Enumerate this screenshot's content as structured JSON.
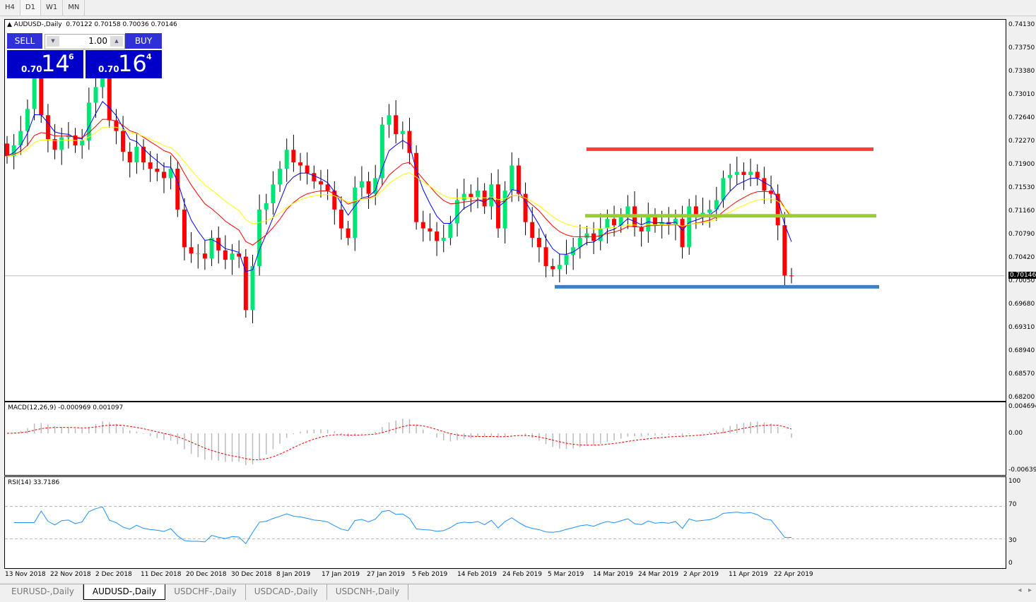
{
  "timeframes": [
    "H4",
    "D1",
    "W1",
    "MN"
  ],
  "active_timeframe": "D1",
  "chart": {
    "header": "AUDUSD-,Daily",
    "ohlc": "0.70122 0.70158 0.70036 0.70146"
  },
  "trade_panel": {
    "sell": "SELL",
    "buy": "BUY",
    "lots": "1.00",
    "sell_big": "0.70",
    "sell_pips": "14",
    "sell_frac": "6",
    "buy_big": "0.70",
    "buy_pips": "16",
    "buy_frac": "4",
    "color": "#0000c8"
  },
  "price_axis": [
    "0.74130",
    "0.73750",
    "0.73380",
    "0.73010",
    "0.72640",
    "0.72270",
    "0.71900",
    "0.71530",
    "0.71160",
    "0.70790",
    "0.70420",
    "0.70050",
    "0.69680",
    "0.69310",
    "0.68940",
    "0.68570",
    "0.68200"
  ],
  "current_price": "0.70146",
  "macd": {
    "label": "MACD(12,26,9) -0.000969 0.001097",
    "axis": [
      "0.004694",
      "0.00",
      "-0.00639"
    ]
  },
  "rsi": {
    "label": "RSI(14) 33.7186",
    "axis": [
      "100",
      "70",
      "30",
      "0"
    ]
  },
  "dates": [
    "13 Nov 2018",
    "22 Nov 2018",
    "2 Dec 2018",
    "11 Dec 2018",
    "20 Dec 2018",
    "30 Dec 2018",
    "8 Jan 2019",
    "17 Jan 2019",
    "27 Jan 2019",
    "5 Feb 2019",
    "14 Feb 2019",
    "24 Feb 2019",
    "5 Mar 2019",
    "14 Mar 2019",
    "24 Mar 2019",
    "2 Apr 2019",
    "11 Apr 2019",
    "22 Apr 2019"
  ],
  "tabs": [
    "EURUSD-,Daily",
    "AUDUSD-,Daily",
    "USDCHF-,Daily",
    "USDCAD-,Daily",
    "USDCNH-,Daily"
  ],
  "active_tab": "AUDUSD-,Daily",
  "chart_data": {
    "type": "candlestick",
    "symbol": "AUDUSD-",
    "period": "Daily",
    "ylim": [
      0.682,
      0.7413
    ],
    "closes": [
      0.7205,
      0.7222,
      0.7245,
      0.728,
      0.733,
      0.727,
      0.7232,
      0.7215,
      0.7235,
      0.7238,
      0.7222,
      0.723,
      0.729,
      0.7315,
      0.733,
      0.7262,
      0.7245,
      0.7212,
      0.7195,
      0.722,
      0.7195,
      0.7185,
      0.718,
      0.717,
      0.7185,
      0.712,
      0.706,
      0.705,
      0.705,
      0.7042,
      0.7075,
      0.7055,
      0.704,
      0.705,
      0.7045,
      0.696,
      0.703,
      0.712,
      0.713,
      0.716,
      0.7185,
      0.7215,
      0.7195,
      0.719,
      0.7178,
      0.7165,
      0.716,
      0.715,
      0.712,
      0.709,
      0.7075,
      0.7155,
      0.7165,
      0.7145,
      0.717,
      0.7255,
      0.727,
      0.724,
      0.7245,
      0.721,
      0.71,
      0.709,
      0.7085,
      0.707,
      0.7075,
      0.7098,
      0.7135,
      0.7145,
      0.714,
      0.715,
      0.7125,
      0.716,
      0.709,
      0.715,
      0.719,
      0.7145,
      0.71,
      0.7075,
      0.706,
      0.703,
      0.7025,
      0.7032,
      0.7048,
      0.706,
      0.7075,
      0.7082,
      0.707,
      0.709,
      0.7105,
      0.7095,
      0.711,
      0.7125,
      0.7092,
      0.7085,
      0.711,
      0.7095,
      0.71,
      0.7095,
      0.7105,
      0.706,
      0.7125,
      0.711,
      0.7115,
      0.712,
      0.7135,
      0.717,
      0.7175,
      0.718,
      0.7175,
      0.718,
      0.717,
      0.715,
      0.7145,
      0.7095,
      0.7015,
      0.70146
    ],
    "moving_averages": [
      {
        "color": "#0000ff"
      },
      {
        "color": "#ff0000"
      },
      {
        "color": "#ffff00"
      }
    ],
    "bull_color": "#00e676",
    "bear_color": "#ff0000",
    "horizontal_lines": [
      {
        "price": 0.7216,
        "color": "#ff3b3b"
      },
      {
        "price": 0.711,
        "color": "#9acd32"
      },
      {
        "price": 0.6997,
        "color": "#3b82c4"
      }
    ]
  }
}
